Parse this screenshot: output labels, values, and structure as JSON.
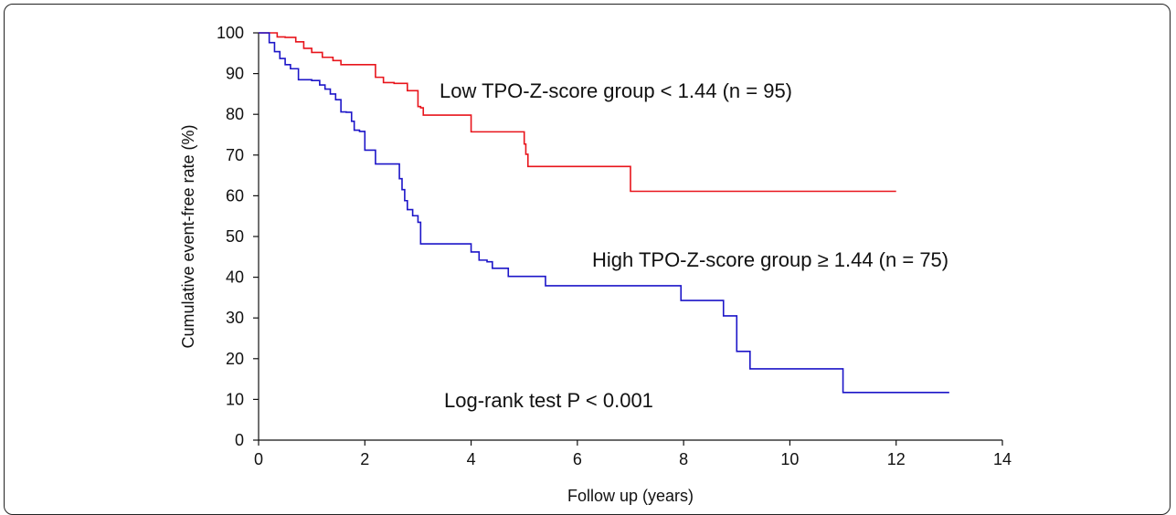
{
  "chart_data": {
    "type": "line",
    "subtype": "kaplan-meier step",
    "title": "",
    "xlabel": "Follow up (years)",
    "ylabel": "Cumulative event-free rate (%)",
    "xlim": [
      0,
      14
    ],
    "ylim": [
      0,
      100
    ],
    "x_ticks": [
      0,
      2,
      4,
      6,
      8,
      10,
      12,
      14
    ],
    "y_ticks": [
      0,
      10,
      20,
      30,
      40,
      50,
      60,
      70,
      80,
      90,
      100
    ],
    "grid": false,
    "legend": "none",
    "series": [
      {
        "color": "#e8141b",
        "x": [
          0,
          0.35,
          0.5,
          0.7,
          0.85,
          1.0,
          1.2,
          1.4,
          1.55,
          2.2,
          2.35,
          2.55,
          2.8,
          3.0,
          3.05,
          3.1,
          3.95,
          4.0,
          5.0,
          5.03,
          5.07,
          7.0,
          12.0
        ],
        "y": [
          100,
          99,
          98.9,
          97.8,
          96.2,
          95.2,
          94.0,
          93.2,
          92.2,
          89.1,
          87.8,
          87.6,
          85.8,
          81.9,
          81.6,
          79.8,
          79.8,
          75.7,
          72.7,
          70.2,
          67.2,
          61.1,
          61.1
        ]
      },
      {
        "color": "#1c15c8",
        "x": [
          0,
          0.2,
          0.3,
          0.4,
          0.5,
          0.6,
          0.75,
          1.0,
          1.15,
          1.25,
          1.35,
          1.45,
          1.55,
          1.65,
          1.75,
          1.8,
          1.9,
          2.0,
          2.2,
          2.65,
          2.7,
          2.75,
          2.8,
          2.9,
          3.0,
          3.05,
          4.0,
          4.15,
          4.3,
          4.4,
          4.7,
          5.4,
          7.9,
          7.95,
          8.7,
          8.75,
          9.0,
          9.25,
          11.0,
          13.0
        ],
        "y": [
          100,
          97.6,
          95.4,
          93.7,
          92.2,
          91.2,
          88.5,
          88.3,
          87.2,
          86.2,
          85.0,
          83.6,
          80.6,
          80.5,
          78.3,
          76.1,
          75.8,
          71.2,
          67.8,
          64.2,
          61.5,
          58.8,
          56.6,
          55.1,
          53.5,
          48.2,
          46.2,
          44.2,
          43.8,
          42.2,
          40.2,
          37.9,
          37.9,
          34.3,
          34.3,
          30.5,
          21.8,
          17.5,
          11.7,
          11.7
        ]
      }
    ],
    "annotations": [
      {
        "id": "low",
        "text": "Low TPO-Z-score group < 1.44 (n = 95)"
      },
      {
        "id": "high",
        "text": "High TPO-Z-score group ≥ 1.44 (n = 75)"
      },
      {
        "id": "logrank",
        "text": "Log-rank test P < 0.001"
      }
    ]
  }
}
